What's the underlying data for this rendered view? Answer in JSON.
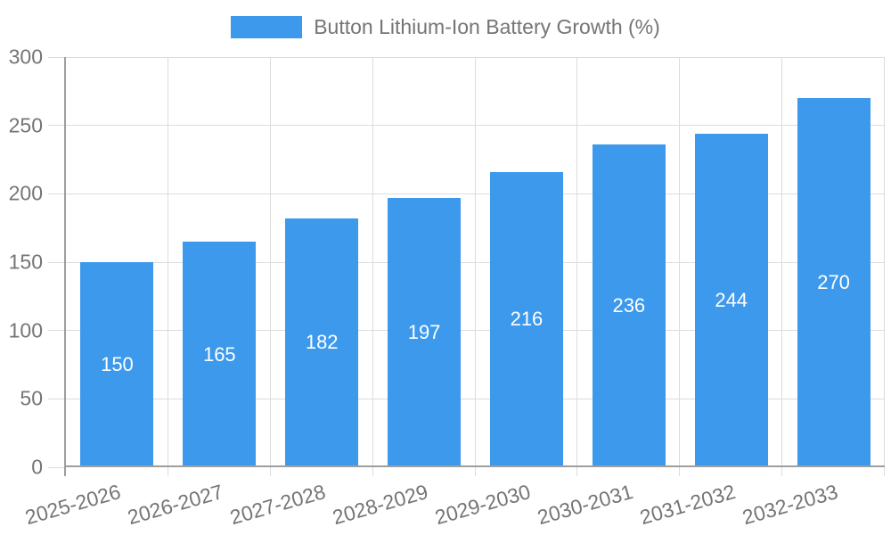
{
  "legend": {
    "label": "Button Lithium-Ion Battery Growth (%)"
  },
  "chart_data": {
    "type": "bar",
    "title": "Button Lithium-Ion Battery Growth (%)",
    "categories": [
      "2025-2026",
      "2026-2027",
      "2027-2028",
      "2028-2029",
      "2029-2030",
      "2030-2031",
      "2031-2032",
      "2032-2033"
    ],
    "values": [
      150,
      165,
      182,
      197,
      216,
      236,
      244,
      270
    ],
    "xlabel": "",
    "ylabel": "",
    "ylim": [
      0,
      300
    ],
    "yticks": [
      0,
      50,
      100,
      150,
      200,
      250,
      300
    ],
    "grid": true,
    "legend_position": "top",
    "colors": {
      "bar": "#3C99EB",
      "value_label": "#FFFFFF",
      "axis": "#9E9E9E",
      "gridline": "#DCDCDC",
      "tick_label": "#757575"
    }
  }
}
